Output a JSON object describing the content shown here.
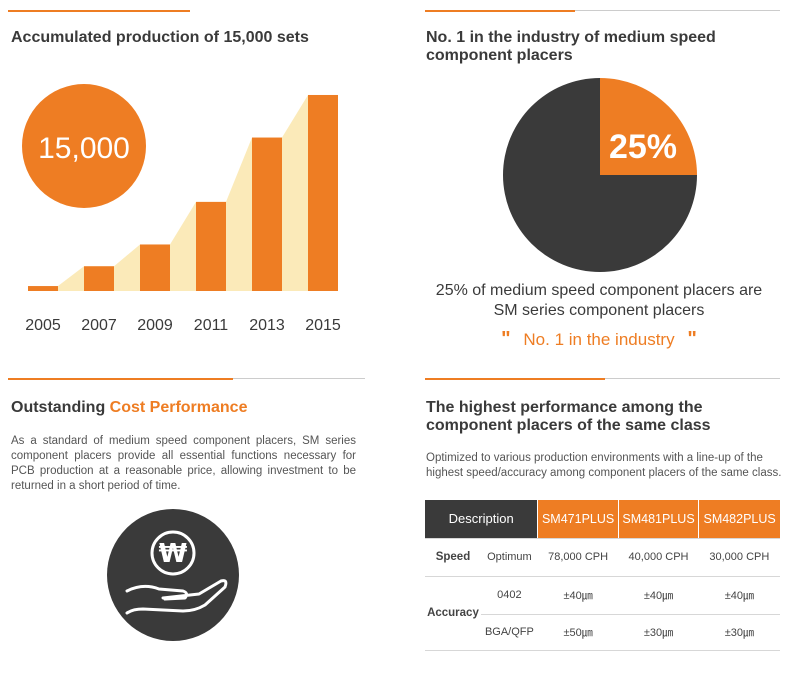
{
  "production": {
    "title": "Accumulated production of 15,000 sets",
    "badge": "15,000",
    "chart_data": {
      "type": "bar",
      "categories": [
        "2005",
        "2007",
        "2009",
        "2011",
        "2013",
        "2015"
      ],
      "values": [
        5,
        25,
        47,
        90,
        155,
        198
      ],
      "ylim": [
        0,
        200
      ],
      "colors": {
        "bar": "#ee7d23",
        "area": "#fbeab9"
      }
    }
  },
  "industry": {
    "title_line1": "No. 1 in the industry of medium speed",
    "title_line2": "component placers",
    "chart_data": {
      "type": "pie",
      "slices": [
        {
          "label": "25%",
          "value": 25,
          "color": "#ee7d23"
        },
        {
          "label": "",
          "value": 75,
          "color": "#3a3a3a"
        }
      ]
    },
    "caption_line1": "25% of medium speed component placers are",
    "caption_line2": "SM series component placers",
    "quote_open": "\"",
    "quote_text": "No. 1 in the industry",
    "quote_close": "\""
  },
  "cost": {
    "title_prefix": "Outstanding ",
    "title_highlight": "Cost Performance",
    "body": "As a standard of medium speed component placers, SM series component placers provide all essential functions necessary for PCB production at a reasonable price, allowing investment to be returned in a short period of time.",
    "icon_symbol": "₩"
  },
  "performance": {
    "title_line1": "The highest performance among the",
    "title_line2": "component placers of the same class",
    "body": "Optimized to various production environments with a line-up of the highest speed/accuracy among component placers of the same class.",
    "table": {
      "header": "Description",
      "models": [
        "SM471PLUS",
        "SM481PLUS",
        "SM482PLUS"
      ],
      "speed_label": "Speed",
      "speed_sub": "Optimum",
      "speed_values": [
        "78,000 CPH",
        "40,000 CPH",
        "30,000 CPH"
      ],
      "accuracy_label": "Accuracy",
      "acc_row1_sub": "0402",
      "acc_row1_values": [
        "±40㎛",
        "±40㎛",
        "±40㎛"
      ],
      "acc_row2_sub": "BGA/QFP",
      "acc_row2_values": [
        "±50㎛",
        "±30㎛",
        "±30㎛"
      ]
    }
  },
  "colors": {
    "accent": "#ee7d23",
    "dark": "#3a3a3a",
    "area": "#fbeab9"
  }
}
